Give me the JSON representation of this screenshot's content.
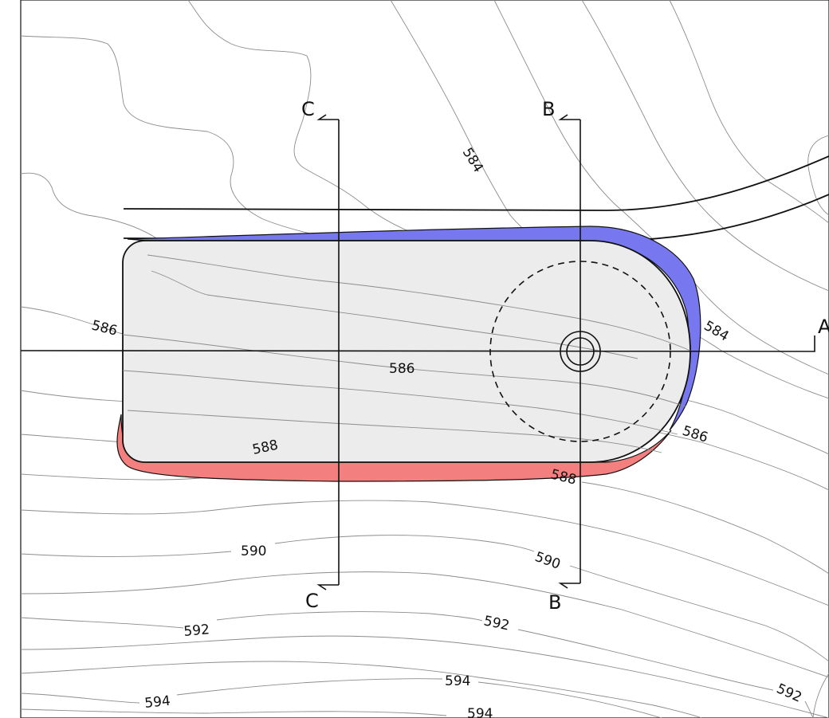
{
  "drawing": {
    "contour_labels": {
      "c584_top": "584",
      "c584_right": "584",
      "c586_left": "586",
      "c586_mid": "586",
      "c586_right": "586",
      "c588_left": "588",
      "c588_right": "588",
      "c590_left": "590",
      "c590_right": "590",
      "c592_left": "592",
      "c592_mid": "592",
      "c592_right": "592",
      "c594_left": "594",
      "c594_mid": "594",
      "c594_bottom": "594"
    },
    "sections": {
      "a_label": "A",
      "b_top_label": "B",
      "b_bottom_label": "B",
      "c_top_label": "C",
      "c_bottom_label": "C"
    },
    "colors": {
      "background": "#ffffff",
      "pad_fill": "#ececec",
      "fill_zone": "#7777f0",
      "cut_zone": "#f47f7f",
      "contour": "#8c8c8c",
      "lines": "#111111"
    },
    "icons": {
      "well": "double-circle-icon"
    }
  }
}
